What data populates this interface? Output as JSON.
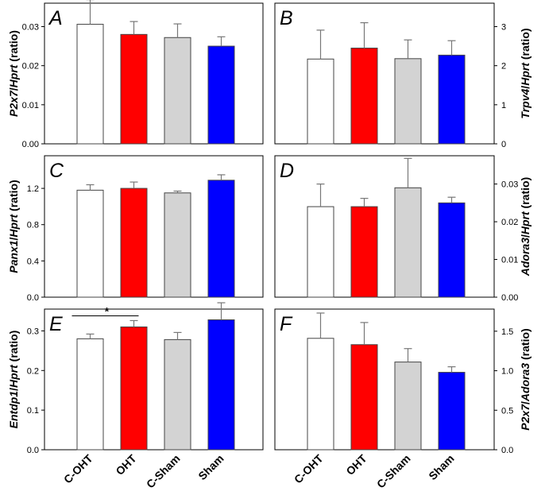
{
  "chart_data": [
    {
      "panel": "A",
      "type": "bar",
      "axis_side": "left",
      "ylabel_parts": [
        "P2x7",
        "/",
        "Hprt",
        " (ratio)"
      ],
      "ylim": [
        0,
        0.036
      ],
      "yticks": [
        0,
        0.01,
        0.02,
        0.03
      ],
      "ytick_labels": [
        "0.00",
        "0.01",
        "0.02",
        "0.03"
      ],
      "categories": [
        "C-OHT",
        "OHT",
        "C-Sham",
        "Sham"
      ],
      "values": [
        0.0306,
        0.028,
        0.0272,
        0.025
      ],
      "errors": [
        0.0063,
        0.0033,
        0.0035,
        0.0024
      ]
    },
    {
      "panel": "B",
      "type": "bar",
      "axis_side": "right",
      "ylabel_parts": [
        "Trpv4",
        "/",
        "Hprt",
        " (ratio)"
      ],
      "ylim": [
        0,
        3.6
      ],
      "yticks": [
        0,
        1,
        2,
        3
      ],
      "ytick_labels": [
        "0",
        "1",
        "2",
        "3"
      ],
      "categories": [
        "C-OHT",
        "OHT",
        "C-Sham",
        "Sham"
      ],
      "values": [
        2.17,
        2.45,
        2.18,
        2.27
      ],
      "errors": [
        0.74,
        0.65,
        0.48,
        0.37
      ]
    },
    {
      "panel": "C",
      "type": "bar",
      "axis_side": "left",
      "ylabel_parts": [
        "Panx1",
        "/",
        "Hprt",
        " (ratio)"
      ],
      "ylim": [
        0,
        1.56
      ],
      "yticks": [
        0,
        0.4,
        0.8,
        1.2
      ],
      "ytick_labels": [
        "0.0",
        "0.4",
        "0.8",
        "1.2"
      ],
      "categories": [
        "C-OHT",
        "OHT",
        "C-Sham",
        "Sham"
      ],
      "values": [
        1.18,
        1.2,
        1.15,
        1.29
      ],
      "errors": [
        0.06,
        0.07,
        0.02,
        0.06
      ]
    },
    {
      "panel": "D",
      "type": "bar",
      "axis_side": "right",
      "ylabel_parts": [
        "Adora3",
        "/",
        "Hprt",
        " (ratio)"
      ],
      "ylim": [
        0,
        0.0375
      ],
      "yticks": [
        0,
        0.01,
        0.02,
        0.03
      ],
      "ytick_labels": [
        "0.00",
        "0.01",
        "0.02",
        "0.03"
      ],
      "categories": [
        "C-OHT",
        "OHT",
        "C-Sham",
        "Sham"
      ],
      "values": [
        0.024,
        0.024,
        0.029,
        0.025
      ],
      "errors": [
        0.006,
        0.0022,
        0.0078,
        0.0015
      ]
    },
    {
      "panel": "E",
      "type": "bar",
      "axis_side": "left",
      "ylabel_parts": [
        "Entdp1",
        "/",
        "Hprt",
        " (ratio)"
      ],
      "ylim": [
        0,
        0.355
      ],
      "yticks": [
        0,
        0.1,
        0.2,
        0.3
      ],
      "ytick_labels": [
        "0.0",
        "0.1",
        "0.2",
        "0.3"
      ],
      "categories": [
        "C-OHT",
        "OHT",
        "C-Sham",
        "Sham"
      ],
      "values": [
        0.28,
        0.31,
        0.278,
        0.328
      ],
      "errors": [
        0.012,
        0.016,
        0.018,
        0.043
      ],
      "significance": {
        "from": 0,
        "to": 1,
        "value": 0.338,
        "label": "*"
      }
    },
    {
      "panel": "F",
      "type": "bar",
      "axis_side": "right",
      "ylabel_parts": [
        "P2x7",
        "/",
        "Adora3",
        " (ratio)"
      ],
      "ylim": [
        0,
        1.78
      ],
      "yticks": [
        0,
        0.5,
        1.0,
        1.5
      ],
      "ytick_labels": [
        "0.0",
        "0.5",
        "1.0",
        "1.5"
      ],
      "categories": [
        "C-OHT",
        "OHT",
        "C-Sham",
        "Sham"
      ],
      "values": [
        1.41,
        1.33,
        1.11,
        0.98
      ],
      "errors": [
        0.32,
        0.28,
        0.17,
        0.07
      ]
    }
  ],
  "bar_colors": [
    "#ffffff",
    "#ff0000",
    "#d3d3d3",
    "#0000ff"
  ],
  "x_categories": [
    "C-OHT",
    "OHT",
    "C-Sham",
    "Sham"
  ]
}
